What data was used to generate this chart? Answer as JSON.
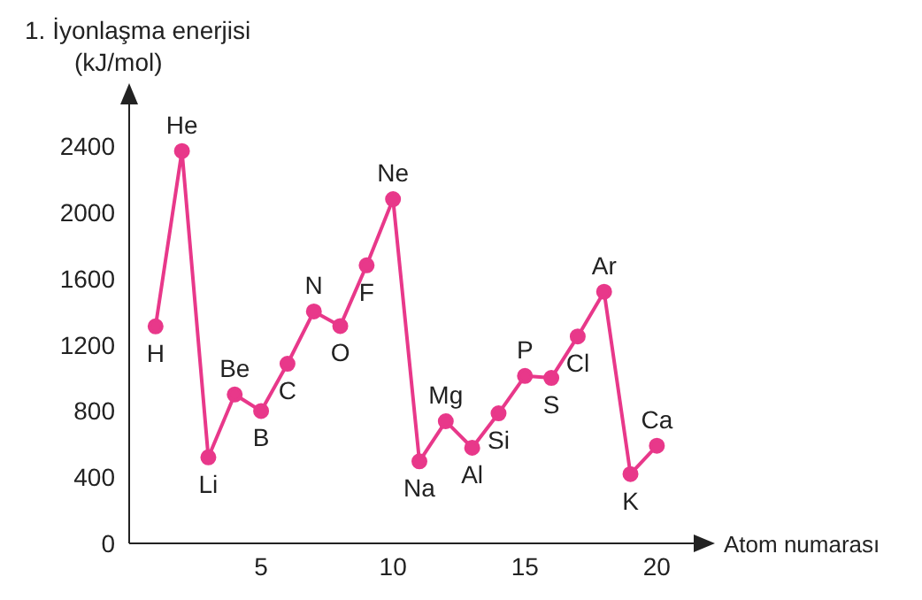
{
  "chart_data": {
    "type": "line",
    "title": "1. İyonlaşma enerjisi",
    "ylabel": "(kJ/mol)",
    "xlabel": "Atom numarası",
    "x": [
      1,
      2,
      3,
      4,
      5,
      6,
      7,
      8,
      9,
      10,
      11,
      12,
      13,
      14,
      15,
      16,
      17,
      18,
      19,
      20
    ],
    "series": [
      {
        "color": "#e8388a",
        "values": [
          1312,
          2372,
          520,
          900,
          800,
          1086,
          1402,
          1314,
          1681,
          2081,
          496,
          738,
          578,
          786,
          1012,
          1000,
          1251,
          1521,
          419,
          590
        ]
      }
    ],
    "xlim": [
      0,
      22
    ],
    "xticks": [
      5,
      10,
      15,
      20
    ],
    "ylim": [
      0,
      2750
    ],
    "yticks": [
      0,
      400,
      800,
      1200,
      1600,
      2000,
      2400
    ],
    "grid": false,
    "marker": "circle",
    "line_style": "solid",
    "annotations": [
      {
        "text": "H",
        "x": 1,
        "y": 1312
      },
      {
        "text": "He",
        "x": 2,
        "y": 2372
      },
      {
        "text": "Li",
        "x": 3,
        "y": 520
      },
      {
        "text": "Be",
        "x": 4,
        "y": 900
      },
      {
        "text": "B",
        "x": 5,
        "y": 800
      },
      {
        "text": "C",
        "x": 6,
        "y": 1086
      },
      {
        "text": "N",
        "x": 7,
        "y": 1402
      },
      {
        "text": "O",
        "x": 8,
        "y": 1314
      },
      {
        "text": "F",
        "x": 9,
        "y": 1681
      },
      {
        "text": "Ne",
        "x": 10,
        "y": 2081
      },
      {
        "text": "Na",
        "x": 11,
        "y": 496
      },
      {
        "text": "Mg",
        "x": 12,
        "y": 738
      },
      {
        "text": "Al",
        "x": 13,
        "y": 578
      },
      {
        "text": "Si",
        "x": 14,
        "y": 786
      },
      {
        "text": "P",
        "x": 15,
        "y": 1012
      },
      {
        "text": "S",
        "x": 16,
        "y": 1000
      },
      {
        "text": "Cl",
        "x": 17,
        "y": 1251
      },
      {
        "text": "Ar",
        "x": 18,
        "y": 1521
      },
      {
        "text": "K",
        "x": 19,
        "y": 419
      },
      {
        "text": "Ca",
        "x": 20,
        "y": 590
      }
    ]
  }
}
